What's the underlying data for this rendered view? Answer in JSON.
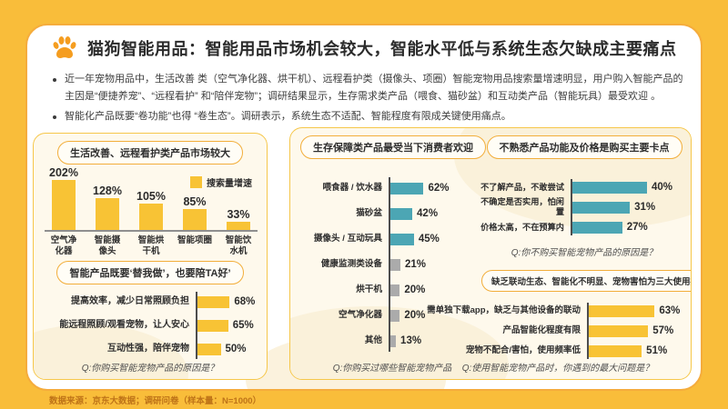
{
  "page": {
    "title": "猫狗智能用品：智能用品市场机会较大，智能水平低与系统生态欠缺成主要痛点",
    "bullets": [
      "近一年宠物用品中，生活改善 类（空气净化器、烘干机）、远程看护类（摄像头、项圈）智能宠物用品搜索量增速明显，用户购入智能产品的主因是“便捷养宠”、“远程看护” 和“陪伴宠物”；调研结果显示，生存需求类产品（喂食、猫砂盆）和互动类产品（智能玩具）最受欢迎 。",
      "智能化产品既要“卷功能”也得 “卷生态”。调研表示，系统生态不适配、智能程度有限成关键使用痛点。"
    ],
    "source": "数据来源：京东大数据；调研问卷（样本量：N=1000）"
  },
  "colors": {
    "background": "#F9BD3A",
    "card_border": "#F5AC3C",
    "panel_background": "#FEF9EC",
    "panel_border": "#F6C74A",
    "yellow_bar": "#F8C335",
    "teal_bar": "#4CA6B4",
    "gray_bar": "#ABABAB",
    "paw_icon": "#F59D1F",
    "source_text": "#BE7318"
  },
  "chart_data": [
    {
      "type": "bar",
      "orientation": "vertical",
      "title": "生活改善、远程看护类产品市场较大",
      "legend": [
        "搜索量增速"
      ],
      "legend_position": "top-right",
      "unit": "%",
      "categories": [
        "空气净化器",
        "智能摄像头",
        "智能烘干机",
        "智能项圈",
        "智能饮水机"
      ],
      "categories_display": [
        "空气净\n化器",
        "智能摄\n像头",
        "智能烘\n干机",
        "智能项圈",
        "智能饮\n水机"
      ],
      "values": [
        202,
        128,
        105,
        85,
        33
      ],
      "bar_color": "#F8C335"
    },
    {
      "type": "bar",
      "orientation": "horizontal",
      "title": "智能产品既要‘替我做’，也要陪TA好’",
      "unit": "%",
      "categories": [
        "提高效率，减少日常照顾负担",
        "能远程照顾/观看宠物，让人安心",
        "互动性强，陪伴宠物"
      ],
      "values": [
        68,
        65,
        50
      ],
      "bar_color": "#F8C335",
      "question": "Q:你购买智能宠物产品的原因是？"
    },
    {
      "type": "bar",
      "orientation": "horizontal",
      "title": "生存保障类产品最受当下消费者欢迎",
      "unit": "%",
      "categories": [
        "喂食器 / 饮水器",
        "猫砂盆",
        "摄像头 / 互动玩具",
        "健康监测类设备",
        "烘干机",
        "空气净化器",
        "其他"
      ],
      "values": [
        62,
        42,
        45,
        21,
        20,
        20,
        13
      ],
      "bar_colors": [
        "#4CA6B4",
        "#4CA6B4",
        "#4CA6B4",
        "#ABABAB",
        "#ABABAB",
        "#ABABAB",
        "#ABABAB"
      ],
      "question": "Q:你购买过哪些智能宠物产品"
    },
    {
      "type": "bar",
      "orientation": "horizontal",
      "title": "不熟悉产品功能及价格是购买主要卡点",
      "unit": "%",
      "categories": [
        "不了解产品，不敢尝试",
        "不确定是否实用，怕闲置",
        "价格太高，不在预算内"
      ],
      "values": [
        40,
        31,
        27
      ],
      "bar_color": "#4CA6B4",
      "question": "Q:你不购买智能宠物产品的原因是？"
    },
    {
      "type": "bar",
      "orientation": "horizontal",
      "title": "缺乏联动生态、智能化不明显、宠物害怕为三大使用痛点",
      "unit": "%",
      "categories": [
        "需单独下载app，缺乏与其他设备的联动",
        "产品智能化程度有限",
        "宠物不配合/害怕，使用频率低"
      ],
      "values": [
        63,
        57,
        51
      ],
      "bar_color": "#F8C335",
      "question": "Q:使用智能宠物产品时，你遇到的最大问题是？"
    }
  ]
}
